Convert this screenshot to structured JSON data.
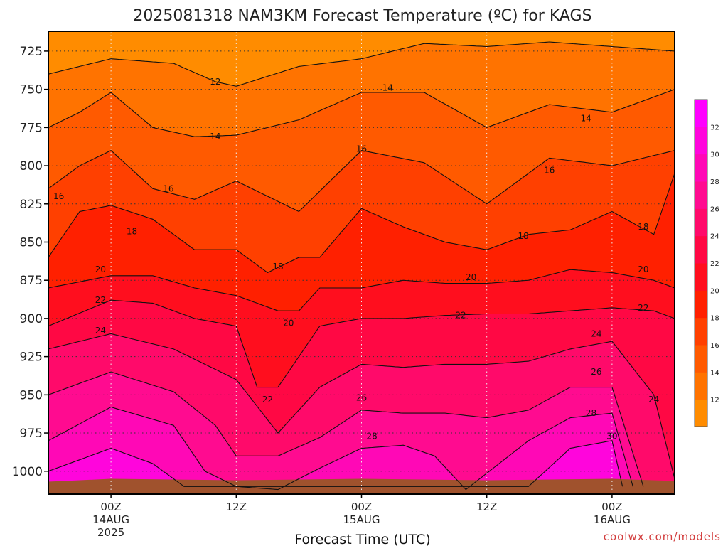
{
  "chart_data": {
    "type": "heatmap",
    "title": "2025081318 NAM3KM Forecast Temperature (ºC) for KAGS",
    "xlabel": "Forecast Time (UTC)",
    "credit": "coolwx.com/models",
    "y_axis": {
      "label": "",
      "scale": "pressure (hPa), increasing downward",
      "range": [
        712,
        1015
      ],
      "ticks": [
        "725",
        "750",
        "775",
        "800",
        "825",
        "850",
        "875",
        "900",
        "925",
        "950",
        "975",
        "1000"
      ]
    },
    "x_axis": {
      "range_hours": [
        -6,
        54
      ],
      "ticks": [
        {
          "hour": 0,
          "lines": [
            "00Z",
            "14AUG",
            "2025"
          ]
        },
        {
          "hour": 12,
          "lines": [
            "12Z"
          ]
        },
        {
          "hour": 24,
          "lines": [
            "00Z",
            "15AUG"
          ]
        },
        {
          "hour": 36,
          "lines": [
            "12Z"
          ]
        },
        {
          "hour": 48,
          "lines": [
            "00Z",
            "16AUG"
          ]
        }
      ]
    },
    "grid": true,
    "colorbar": {
      "placement": "right",
      "levels": [
        10,
        12,
        14,
        16,
        18,
        20,
        22,
        24,
        26,
        28,
        30,
        32,
        34
      ],
      "tick_labels": [
        "12",
        "14",
        "16",
        "18",
        "20",
        "22",
        "24",
        "26",
        "28",
        "30",
        "32"
      ],
      "colors": [
        "#ff8c00",
        "#ff7300",
        "#ff5a00",
        "#ff4000",
        "#ff2000",
        "#ff0e1e",
        "#ff0844",
        "#ff0a6a",
        "#ff0b90",
        "#ff08b6",
        "#ff05dc",
        "#ff00ff"
      ]
    },
    "isotherms": [
      {
        "temp": 12,
        "pressure_by_hour": {
          "x": [
            -6,
            0,
            6,
            10,
            12,
            18,
            24,
            30,
            36,
            42,
            48,
            54
          ],
          "y": [
            740,
            730,
            733,
            745,
            748,
            735,
            730,
            720,
            722,
            719,
            722,
            725
          ]
        }
      },
      {
        "temp": 14,
        "pressure_by_hour": {
          "x": [
            -6,
            -3,
            0,
            4,
            8,
            12,
            18,
            24,
            30,
            36,
            42,
            48,
            54
          ],
          "y": [
            775,
            765,
            752,
            775,
            781,
            780,
            770,
            752,
            752,
            775,
            760,
            765,
            750
          ]
        }
      },
      {
        "temp": 16,
        "pressure_by_hour": {
          "x": [
            -6,
            -3,
            0,
            4,
            8,
            12,
            18,
            24,
            30,
            36,
            42,
            48,
            54
          ],
          "y": [
            815,
            800,
            790,
            815,
            822,
            810,
            830,
            790,
            798,
            825,
            795,
            800,
            790
          ]
        }
      },
      {
        "temp": 18,
        "pressure_by_hour": {
          "x": [
            -6,
            -3,
            0,
            4,
            8,
            12,
            15,
            18,
            20,
            24,
            28,
            32,
            36,
            40,
            44,
            48,
            52,
            54
          ],
          "y": [
            860,
            830,
            826,
            835,
            855,
            855,
            870,
            860,
            860,
            828,
            840,
            850,
            855,
            845,
            842,
            830,
            845,
            805
          ]
        }
      },
      {
        "temp": 20,
        "pressure_by_hour": {
          "x": [
            -6,
            0,
            4,
            8,
            12,
            16,
            18,
            20,
            24,
            28,
            32,
            36,
            40,
            44,
            48,
            52,
            54
          ],
          "y": [
            880,
            872,
            872,
            880,
            885,
            895,
            895,
            880,
            880,
            875,
            877,
            877,
            875,
            868,
            870,
            875,
            880
          ]
        }
      },
      {
        "temp": 22,
        "pressure_by_hour": {
          "x": [
            -6,
            0,
            4,
            8,
            12,
            14,
            16,
            20,
            24,
            28,
            32,
            36,
            40,
            44,
            48,
            52,
            54
          ],
          "y": [
            905,
            888,
            890,
            900,
            905,
            945,
            945,
            905,
            900,
            900,
            898,
            897,
            897,
            895,
            893,
            895,
            900
          ]
        }
      },
      {
        "temp": 24,
        "pressure_by_hour": {
          "x": [
            -6,
            0,
            6,
            12,
            16,
            20,
            24,
            28,
            32,
            36,
            40,
            44,
            48,
            52,
            54
          ],
          "y": [
            920,
            910,
            920,
            940,
            975,
            945,
            930,
            932,
            930,
            930,
            928,
            920,
            915,
            950,
            1005
          ]
        }
      },
      {
        "temp": 26,
        "pressure_by_hour": {
          "x": [
            -6,
            0,
            6,
            10,
            12,
            16,
            20,
            24,
            28,
            32,
            36,
            40,
            44,
            48,
            51
          ],
          "y": [
            950,
            935,
            948,
            970,
            990,
            990,
            978,
            960,
            962,
            962,
            965,
            960,
            945,
            945,
            1010
          ]
        }
      },
      {
        "temp": 28,
        "pressure_by_hour": {
          "x": [
            -6,
            0,
            6,
            9,
            12,
            16,
            20,
            24,
            28,
            31,
            34,
            40,
            44,
            48,
            50
          ],
          "y": [
            980,
            958,
            970,
            1000,
            1010,
            1012,
            998,
            985,
            983,
            990,
            1012,
            980,
            965,
            962,
            1010
          ]
        }
      },
      {
        "temp": 30,
        "pressure_by_hour": {
          "x": [
            -6,
            0,
            4,
            7,
            40,
            44,
            48,
            49
          ],
          "y": [
            1000,
            985,
            995,
            1010,
            1010,
            985,
            980,
            1010
          ]
        }
      }
    ],
    "contour_labels": [
      {
        "text": "12",
        "hour": 10,
        "pressure": 745
      },
      {
        "text": "14",
        "hour": 26.5,
        "pressure": 749
      },
      {
        "text": "14",
        "hour": 10,
        "pressure": 781
      },
      {
        "text": "14",
        "hour": 45.5,
        "pressure": 769
      },
      {
        "text": "16",
        "hour": 24,
        "pressure": 789
      },
      {
        "text": "16",
        "hour": 42,
        "pressure": 803
      },
      {
        "text": "16",
        "hour": 5.5,
        "pressure": 815
      },
      {
        "text": "16",
        "hour": -5,
        "pressure": 820
      },
      {
        "text": "18",
        "hour": 2,
        "pressure": 843
      },
      {
        "text": "18",
        "hour": 16,
        "pressure": 866
      },
      {
        "text": "18",
        "hour": 39.5,
        "pressure": 846
      },
      {
        "text": "18",
        "hour": 51,
        "pressure": 840
      },
      {
        "text": "20",
        "hour": -1,
        "pressure": 868
      },
      {
        "text": "20",
        "hour": 34.5,
        "pressure": 873
      },
      {
        "text": "20",
        "hour": 51,
        "pressure": 868
      },
      {
        "text": "20",
        "hour": 17,
        "pressure": 903
      },
      {
        "text": "22",
        "hour": -1,
        "pressure": 888
      },
      {
        "text": "22",
        "hour": 33.5,
        "pressure": 898
      },
      {
        "text": "22",
        "hour": 51,
        "pressure": 893
      },
      {
        "text": "22",
        "hour": 15,
        "pressure": 953
      },
      {
        "text": "24",
        "hour": -1,
        "pressure": 908
      },
      {
        "text": "24",
        "hour": 46.5,
        "pressure": 910
      },
      {
        "text": "24",
        "hour": 52,
        "pressure": 953
      },
      {
        "text": "26",
        "hour": 46.5,
        "pressure": 935
      },
      {
        "text": "26",
        "hour": 24,
        "pressure": 952
      },
      {
        "text": "28",
        "hour": 25,
        "pressure": 977
      },
      {
        "text": "28",
        "hour": 46,
        "pressure": 962
      },
      {
        "text": "30",
        "hour": 48,
        "pressure": 977
      }
    ]
  }
}
